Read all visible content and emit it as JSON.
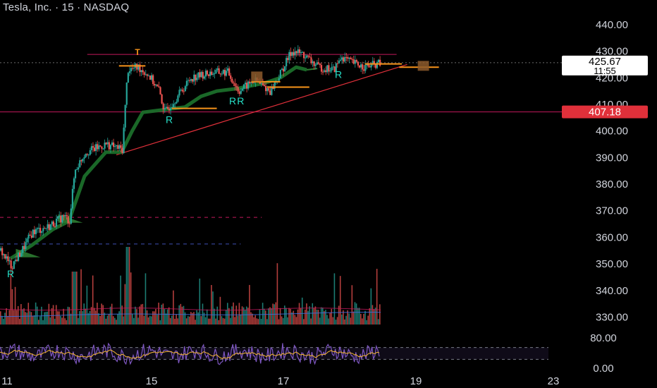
{
  "header": {
    "title": "Tesla, Inc. · 15 · NASDAQ"
  },
  "colors": {
    "background": "#000000",
    "up": "#26a69a",
    "down": "#ef5350",
    "trend_band": "#1b6e2a",
    "support_line": "#e0303a",
    "level_line": "#c2185b",
    "orange": "#f7931a",
    "rsi": "#7e57c2",
    "rsi_ma": "#f7b731",
    "marker_r": "#26e0c8"
  },
  "chart_data": [
    {
      "type": "candlestick",
      "title": "Tesla, Inc. · 15 · NASDAQ",
      "ylim": [
        328,
        443
      ],
      "y_ticks": [
        "440.00",
        "430.00",
        "420.00",
        "410.00",
        "400.00",
        "390.00",
        "380.00",
        "370.00",
        "360.00",
        "350.00",
        "340.00",
        "330.00"
      ],
      "x_ticks": [
        "11",
        "15",
        "17",
        "19",
        "23"
      ],
      "last_price": {
        "value": "425.67",
        "countdown": "11:55"
      },
      "level_label": {
        "value": "407.18"
      },
      "horizontal_levels": [
        {
          "price": 428.8,
          "style": "solid"
        },
        {
          "price": 407.18,
          "style": "solid"
        },
        {
          "price": 367.5,
          "style": "dashed"
        },
        {
          "price": 357.5,
          "style": "dashed"
        }
      ],
      "trendline": {
        "from": [
          0.22,
          391.0
        ],
        "to": [
          0.77,
          425.0
        ]
      },
      "markers": [
        {
          "label": "R",
          "x": 0.02,
          "price": 345.0
        },
        {
          "label": "R",
          "x": 0.32,
          "price": 403.0
        },
        {
          "label": "R",
          "x": 0.44,
          "price": 410.0
        },
        {
          "label": "R",
          "x": 0.455,
          "price": 410.0
        },
        {
          "label": "R",
          "x": 0.64,
          "price": 420.0
        },
        {
          "label": "T",
          "x": 0.26,
          "price": 428.5
        }
      ],
      "price_path": [
        {
          "x": 0.0,
          "price": 355
        },
        {
          "x": 0.02,
          "price": 349
        },
        {
          "x": 0.04,
          "price": 355
        },
        {
          "x": 0.06,
          "price": 362
        },
        {
          "x": 0.09,
          "price": 364
        },
        {
          "x": 0.12,
          "price": 368
        },
        {
          "x": 0.13,
          "price": 366
        },
        {
          "x": 0.14,
          "price": 385
        },
        {
          "x": 0.16,
          "price": 392
        },
        {
          "x": 0.2,
          "price": 395
        },
        {
          "x": 0.23,
          "price": 393
        },
        {
          "x": 0.24,
          "price": 423
        },
        {
          "x": 0.26,
          "price": 424
        },
        {
          "x": 0.28,
          "price": 421
        },
        {
          "x": 0.3,
          "price": 415
        },
        {
          "x": 0.31,
          "price": 407
        },
        {
          "x": 0.33,
          "price": 412
        },
        {
          "x": 0.36,
          "price": 420
        },
        {
          "x": 0.4,
          "price": 422
        },
        {
          "x": 0.43,
          "price": 422
        },
        {
          "x": 0.45,
          "price": 415
        },
        {
          "x": 0.48,
          "price": 419
        },
        {
          "x": 0.51,
          "price": 415
        },
        {
          "x": 0.53,
          "price": 422
        },
        {
          "x": 0.55,
          "price": 430
        },
        {
          "x": 0.57,
          "price": 429
        },
        {
          "x": 0.6,
          "price": 424
        },
        {
          "x": 0.63,
          "price": 423
        },
        {
          "x": 0.645,
          "price": 428
        },
        {
          "x": 0.66,
          "price": 426
        },
        {
          "x": 0.69,
          "price": 424
        },
        {
          "x": 0.72,
          "price": 425.67
        }
      ],
      "band_path": [
        {
          "x": 0.02,
          "price": 352
        },
        {
          "x": 0.06,
          "price": 357
        },
        {
          "x": 0.1,
          "price": 363
        },
        {
          "x": 0.13,
          "price": 366
        },
        {
          "x": 0.16,
          "price": 383
        },
        {
          "x": 0.2,
          "price": 392
        },
        {
          "x": 0.23,
          "price": 392
        },
        {
          "x": 0.25,
          "price": 400
        },
        {
          "x": 0.27,
          "price": 407
        },
        {
          "x": 0.31,
          "price": 408
        },
        {
          "x": 0.35,
          "price": 409
        },
        {
          "x": 0.38,
          "price": 413
        },
        {
          "x": 0.41,
          "price": 415
        },
        {
          "x": 0.45,
          "price": 416
        },
        {
          "x": 0.5,
          "price": 418
        },
        {
          "x": 0.53,
          "price": 420
        },
        {
          "x": 0.56,
          "price": 424
        },
        {
          "x": 0.58,
          "price": 423
        }
      ],
      "volume_baseline": 0.6,
      "rsi": {
        "y_ticks": [
          "80.00",
          "0.00"
        ],
        "upper": 70,
        "lower": 30
      }
    }
  ]
}
